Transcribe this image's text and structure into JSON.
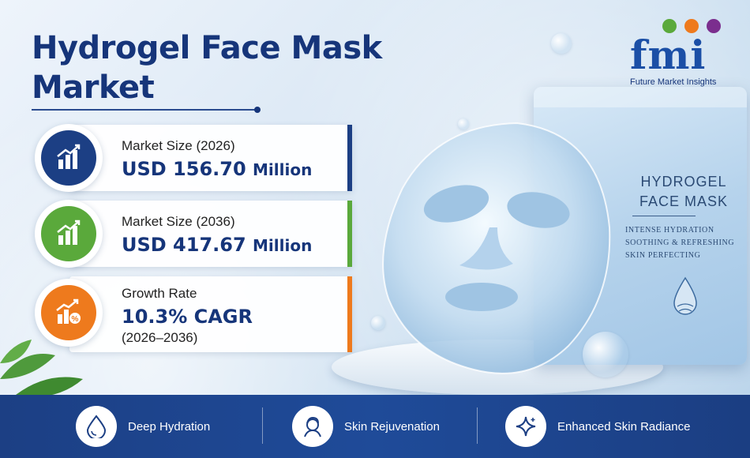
{
  "title_line1": "Hydrogel Face Mask",
  "title_line2": "Market",
  "logo": {
    "wordmark": "fmi",
    "tagline": "Future Market Insights"
  },
  "stats": [
    {
      "label": "Market Size (2026)",
      "value": "USD 156.70",
      "unit": "Million",
      "icon": "bar-chart-growth-icon",
      "color": "#1c3f84"
    },
    {
      "label": "Market Size (2036)",
      "value": "USD 417.67",
      "unit": "Million",
      "icon": "bar-chart-growth-icon",
      "color": "#5aa93b"
    },
    {
      "label": "Growth Rate",
      "value": "10.3% CAGR",
      "unit": "",
      "sub": "(2026–2036)",
      "icon": "growth-percent-icon",
      "color": "#ee7a1d"
    }
  ],
  "packet": {
    "title_line1": "HYDROGEL",
    "title_line2": "FACE MASK",
    "lines": [
      "INTENSE HYDRATION",
      "SOOTHING & REFRESHING",
      "SKIN PERFECTING"
    ]
  },
  "features": [
    {
      "label": "Deep Hydration",
      "icon": "water-drop-icon"
    },
    {
      "label": "Skin Rejuvenation",
      "icon": "face-profile-icon"
    },
    {
      "label": "Enhanced Skin Radiance",
      "icon": "sparkle-icon"
    }
  ]
}
